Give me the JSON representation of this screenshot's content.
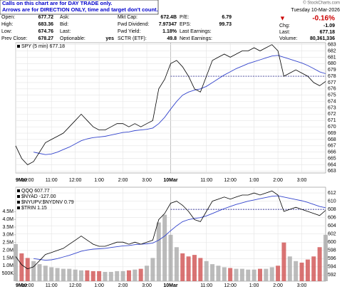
{
  "header": {
    "note": [
      "Calls on this chart are for DAY TRADE only.",
      "Arrows are for DIRECTION ONLY, time and target don't count."
    ],
    "watermark": "© StockCharts.com",
    "date": "Tuesday 10-Mar-2026",
    "change_pct": "-0.16%",
    "quote": [
      [
        {
          "label": "Open:",
          "value": "677.72"
        },
        {
          "label": "High:",
          "value": "683.36"
        },
        {
          "label": "Low:",
          "value": "674.76"
        },
        {
          "label": "Prev Close:",
          "value": "678.27"
        }
      ],
      [
        {
          "label": "Ask:"
        },
        {
          "label": "Bid:"
        },
        {
          "label": "Last:"
        },
        {
          "label": "Optionable:",
          "value": "yes"
        }
      ],
      [
        {
          "label": "Mkt Cap:",
          "value": "672.4B"
        },
        {
          "label": "Fwd Dividend:",
          "value": "7.97347"
        },
        {
          "label": "Fwd Yield:",
          "value": "1.18%"
        },
        {
          "label": "SCTR (ETF):",
          "value": "49.8"
        }
      ],
      [
        {
          "label": "P/E:",
          "value": "6.79"
        },
        {
          "label": "EPS:",
          "value": "99.73"
        },
        {
          "label": "Last Earnings:"
        },
        {
          "label": "Next Earnings:"
        }
      ]
    ],
    "right": [
      {
        "label": "Chg:",
        "value": "-1.09"
      },
      {
        "label": "Last:",
        "value": "677.18"
      },
      {
        "label": "Volume:",
        "value": "80,361,336"
      }
    ]
  },
  "chart_data": [
    {
      "type": "line",
      "xlim": [
        0,
        156
      ],
      "ylim": [
        662.7,
        683.3
      ],
      "grid": true,
      "xticks": [
        {
          "value": 0,
          "label": "9Mar"
        },
        {
          "value": 6,
          "label": "10:00"
        },
        {
          "value": 18,
          "label": "11:00"
        },
        {
          "value": 30,
          "label": "12:00"
        },
        {
          "value": 42,
          "label": "1:00"
        },
        {
          "value": 54,
          "label": "2:00"
        },
        {
          "value": 66,
          "label": "3:00"
        },
        {
          "value": 78,
          "label": "10Mar"
        },
        {
          "value": 96,
          "label": "11:00"
        },
        {
          "value": 108,
          "label": "12:00"
        },
        {
          "value": 120,
          "label": "1:00"
        },
        {
          "value": 132,
          "label": "2:00"
        },
        {
          "value": 144,
          "label": "3:00"
        }
      ],
      "yticks": [
        663,
        664,
        665,
        666,
        667,
        668,
        669,
        670,
        671,
        672,
        673,
        674,
        675,
        676,
        677,
        678,
        679,
        680,
        681,
        682,
        683
      ],
      "x": [
        0,
        3,
        6,
        9,
        12,
        15,
        18,
        21,
        24,
        27,
        30,
        33,
        36,
        39,
        42,
        45,
        48,
        51,
        54,
        57,
        60,
        63,
        66,
        69,
        72,
        75,
        78,
        81,
        84,
        87,
        90,
        93,
        96,
        99,
        102,
        105,
        108,
        111,
        114,
        117,
        120,
        123,
        126,
        129,
        132,
        135,
        138,
        141,
        144,
        147,
        150,
        153,
        156
      ],
      "series": [
        {
          "name": "SPY (5 min) 677.18",
          "color": "#000000",
          "values": [
            667,
            665,
            664,
            664.5,
            666,
            667.5,
            668,
            668.5,
            669,
            670,
            671,
            672,
            671,
            670,
            669.5,
            669.5,
            670,
            670.5,
            670.5,
            670,
            670.5,
            670,
            670.5,
            671,
            676,
            677.5,
            680,
            680.5,
            679.5,
            678,
            676,
            675.5,
            678,
            680.5,
            681,
            681.5,
            681,
            681.5,
            682,
            682,
            682.5,
            682,
            682.5,
            683,
            682,
            678,
            678.5,
            679,
            678.5,
            678,
            677,
            676.5,
            677.18
          ]
        }
      ],
      "overlays": [
        {
          "color": "#3344cc",
          "values": [
            null,
            null,
            null,
            666,
            665.8,
            665.6,
            665.7,
            666,
            666.4,
            666.8,
            667.3,
            667.8,
            668.1,
            668.3,
            668.4,
            668.5,
            668.7,
            668.9,
            669.1,
            669.2,
            669.4,
            669.5,
            669.6,
            669.8,
            670.5,
            671.5,
            672.8,
            674,
            675,
            675.5,
            675.8,
            676,
            676.4,
            677,
            677.6,
            678.2,
            678.7,
            679.2,
            679.6,
            680,
            680.3,
            680.6,
            680.9,
            681.2,
            681.3,
            681,
            680.7,
            680.4,
            680.1,
            679.7,
            679.2,
            678.7,
            678.4
          ]
        }
      ],
      "hline": {
        "value": 678,
        "from": 78,
        "color": "#000080"
      }
    },
    {
      "type": "line",
      "xlim": [
        0,
        156
      ],
      "ylim": [
        590.5,
        613.4
      ],
      "y2lim": [
        0,
        6080000
      ],
      "grid": true,
      "xticks": [
        {
          "value": 0,
          "label": "9Mar"
        },
        {
          "value": 6,
          "label": "10:00"
        },
        {
          "value": 18,
          "label": "11:00"
        },
        {
          "value": 30,
          "label": "12:00"
        },
        {
          "value": 42,
          "label": "1:00"
        },
        {
          "value": 54,
          "label": "2:00"
        },
        {
          "value": 66,
          "label": "3:00"
        },
        {
          "value": 78,
          "label": "10Mar"
        },
        {
          "value": 96,
          "label": "11:00"
        },
        {
          "value": 108,
          "label": "12:00"
        },
        {
          "value": 120,
          "label": "1:00"
        },
        {
          "value": 132,
          "label": "2:00"
        },
        {
          "value": 144,
          "label": "3:00"
        }
      ],
      "yticks": [
        592,
        594,
        596,
        598,
        600,
        602,
        604,
        606,
        608,
        610,
        612
      ],
      "y2ticks": [
        {
          "value": 500000,
          "label": "500K"
        },
        {
          "value": 1000000,
          "label": "1.0M"
        },
        {
          "value": 1500000,
          "label": "1.5M"
        },
        {
          "value": 2000000,
          "label": "2.0M"
        },
        {
          "value": 2500000,
          "label": "2.5M"
        },
        {
          "value": 3000000,
          "label": "3.0M"
        },
        {
          "value": 3500000,
          "label": "3.5M"
        },
        {
          "value": 4000000,
          "label": "4.0M"
        },
        {
          "value": 4500000,
          "label": "4.5M"
        }
      ],
      "x": [
        0,
        3,
        6,
        9,
        12,
        15,
        18,
        21,
        24,
        27,
        30,
        33,
        36,
        39,
        42,
        45,
        48,
        51,
        54,
        57,
        60,
        63,
        66,
        69,
        72,
        75,
        78,
        81,
        84,
        87,
        90,
        93,
        96,
        99,
        102,
        105,
        108,
        111,
        114,
        117,
        120,
        123,
        126,
        129,
        132,
        135,
        138,
        141,
        144,
        147,
        150,
        153,
        156
      ],
      "series": [
        {
          "name": "QQQ 607.77",
          "color": "#000000",
          "values": [
            596.5,
            594.5,
            593.5,
            594,
            595.5,
            597,
            597.5,
            598,
            598.5,
            599.5,
            600.5,
            601.5,
            600.5,
            599.5,
            599,
            599,
            599.5,
            600,
            600,
            599.5,
            600,
            599.5,
            600,
            600.5,
            605.5,
            607,
            609.5,
            610,
            609,
            607.5,
            605.5,
            605,
            607.5,
            610,
            610.5,
            611,
            610.5,
            611,
            611.5,
            611.5,
            612,
            611.5,
            612,
            612.5,
            611.5,
            607.5,
            608,
            608.5,
            608,
            607.5,
            607,
            606.5,
            607.77
          ]
        }
      ],
      "overlays": [
        {
          "color": "#3344cc",
          "values": [
            null,
            null,
            null,
            596,
            595.8,
            595.6,
            595.7,
            596,
            596.4,
            596.8,
            597.3,
            597.8,
            598.1,
            598.3,
            598.4,
            598.5,
            598.7,
            598.9,
            599.1,
            599.2,
            599.4,
            599.5,
            599.6,
            599.8,
            600.5,
            601.5,
            602.8,
            604,
            605,
            605.5,
            605.8,
            606,
            606.4,
            607,
            607.6,
            608.2,
            608.7,
            609.2,
            609.6,
            610,
            610.3,
            610.6,
            610.9,
            611.2,
            611.3,
            611,
            610.7,
            610.4,
            610.1,
            609.7,
            609.2,
            608.7,
            608.4
          ]
        }
      ],
      "legend_extra": [
        "$NYAD -127.00",
        "$NYUPV:$NYDNV 0.79",
        "$TRIN 1.15"
      ],
      "volume": {
        "axis": "y2",
        "up_color": "#aaaaaa",
        "down_color": "#d05050",
        "values": [
          2400000,
          1800000,
          1500000,
          1300000,
          1100000,
          1000000,
          900000,
          850000,
          800000,
          800000,
          750000,
          700000,
          700000,
          650000,
          650000,
          600000,
          600000,
          650000,
          650000,
          700000,
          750000,
          800000,
          1000000,
          1500000,
          3800000,
          4300000,
          3000000,
          2200000,
          1800000,
          1600000,
          1700000,
          1500000,
          1300000,
          1100000,
          1000000,
          900000,
          850000,
          800000,
          800000,
          750000,
          750000,
          800000,
          800000,
          900000,
          1000000,
          2500000,
          1600000,
          1300000,
          1200000,
          1400000,
          1600000,
          2200000,
          3000000
        ]
      },
      "hline": {
        "value": 608,
        "from": 78,
        "color": "#000080"
      }
    }
  ]
}
